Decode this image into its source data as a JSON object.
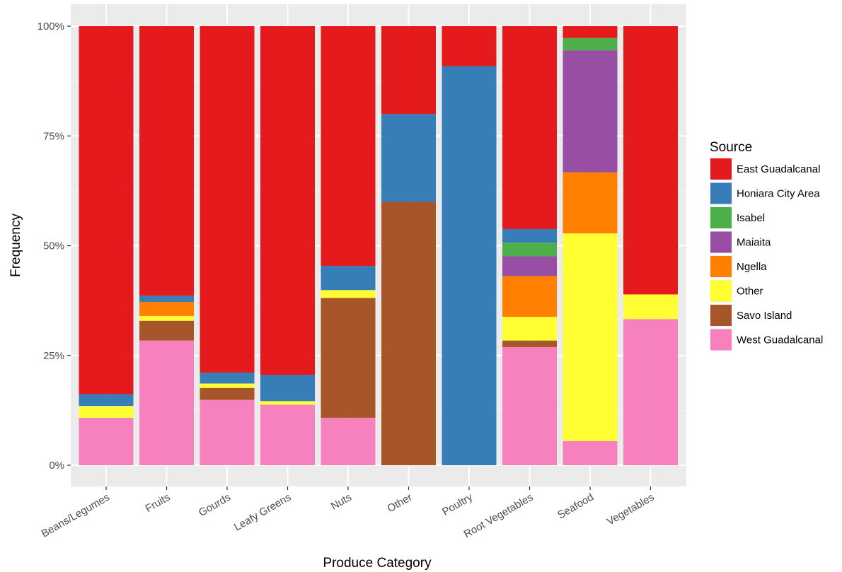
{
  "chart_data": {
    "type": "bar",
    "stacked": true,
    "normalized": true,
    "title": "",
    "xlabel": "Produce Category",
    "ylabel": "Frequency",
    "ylim": [
      0,
      1
    ],
    "y_ticks": [
      0,
      0.25,
      0.5,
      0.75,
      1.0
    ],
    "y_tick_labels": [
      "0%",
      "25%",
      "50%",
      "75%",
      "100%"
    ],
    "grid": true,
    "legend_position": "right",
    "legend_title": "Source",
    "categories": [
      "Beans/Legumes",
      "Fruits",
      "Gourds",
      "Leafy Greens",
      "Nuts",
      "Other",
      "Poultry",
      "Root Vegetables",
      "Seafood",
      "Vegetables"
    ],
    "series": [
      {
        "name": "West Guadalcanal",
        "color": "#F781BF",
        "values": [
          0.108,
          0.284,
          0.149,
          0.138,
          0.108,
          0.0,
          0.0,
          0.269,
          0.055,
          0.333
        ]
      },
      {
        "name": "Savo Island",
        "color": "#A65628",
        "values": [
          0.0,
          0.045,
          0.027,
          0.0,
          0.273,
          0.6,
          0.0,
          0.015,
          0.0,
          0.0
        ]
      },
      {
        "name": "Other",
        "color": "#FFFF33",
        "values": [
          0.027,
          0.011,
          0.01,
          0.008,
          0.018,
          0.0,
          0.0,
          0.054,
          0.473,
          0.056
        ]
      },
      {
        "name": "Ngella",
        "color": "#FF7F00",
        "values": [
          0.0,
          0.032,
          0.0,
          0.0,
          0.0,
          0.0,
          0.0,
          0.093,
          0.139,
          0.0
        ]
      },
      {
        "name": "Maiaita",
        "color": "#984EA3",
        "values": [
          0.0,
          0.0,
          0.0,
          0.0,
          0.0,
          0.0,
          0.0,
          0.045,
          0.278,
          0.0
        ]
      },
      {
        "name": "Isabel",
        "color": "#4DAF4A",
        "values": [
          0.0,
          0.0,
          0.0,
          0.0,
          0.0,
          0.0,
          0.0,
          0.031,
          0.028,
          0.0
        ]
      },
      {
        "name": "Honiara City Area",
        "color": "#377EB8",
        "values": [
          0.027,
          0.014,
          0.025,
          0.06,
          0.055,
          0.2,
          0.909,
          0.031,
          0.0,
          0.0
        ]
      },
      {
        "name": "East Guadalcanal",
        "color": "#E41A1C",
        "values": [
          0.838,
          0.614,
          0.789,
          0.794,
          0.546,
          0.2,
          0.091,
          0.462,
          0.027,
          0.611
        ]
      }
    ],
    "legend_order": [
      "East Guadalcanal",
      "Honiara City Area",
      "Isabel",
      "Maiaita",
      "Ngella",
      "Other",
      "Savo Island",
      "West Guadalcanal"
    ]
  }
}
